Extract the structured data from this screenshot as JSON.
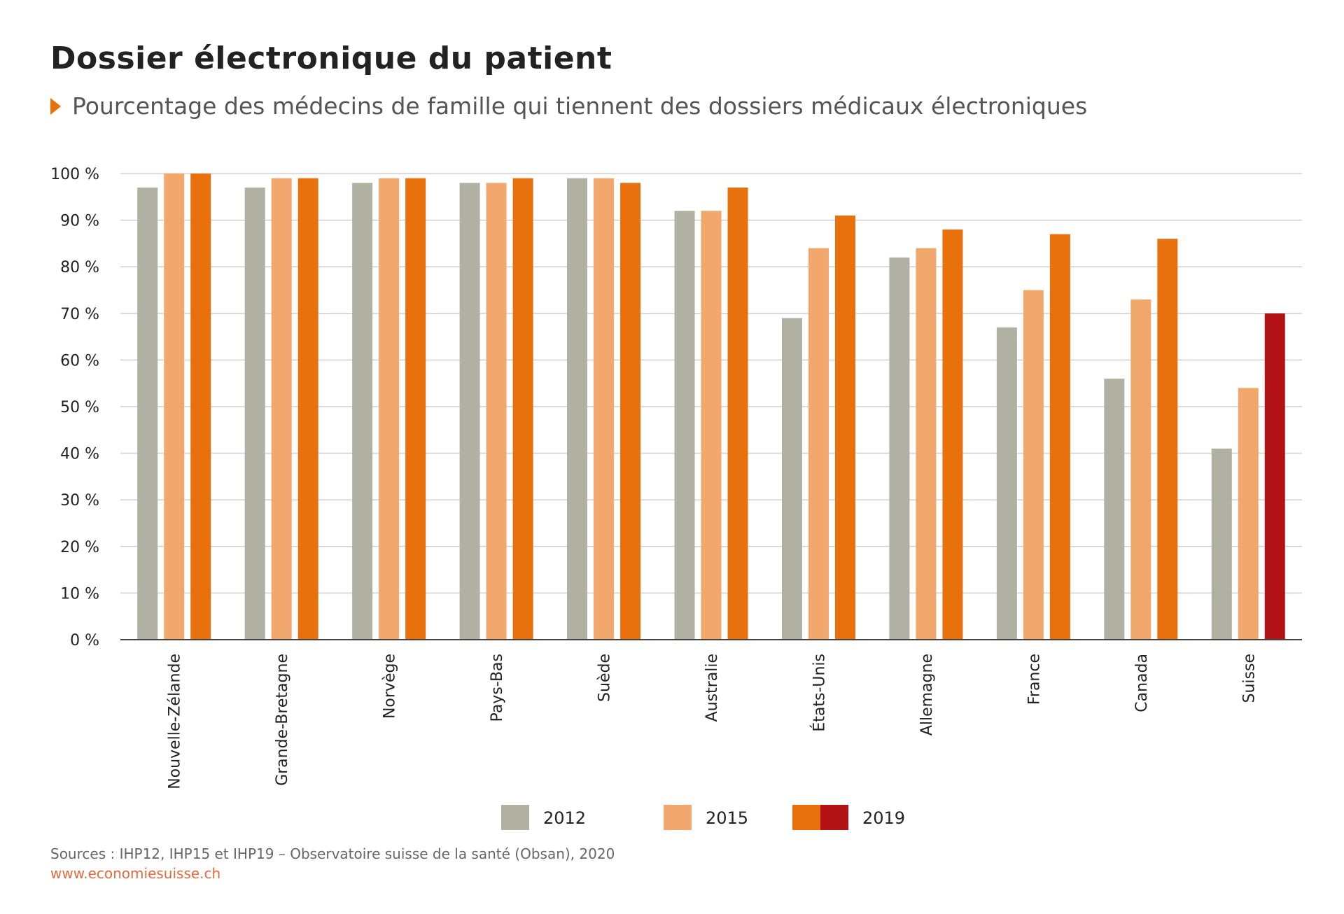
{
  "header": {
    "title": "Dossier électronique du patient",
    "subtitle": "Pourcentage des médecins de famille qui tiennent des dossiers médicaux électroniques"
  },
  "footer": {
    "source": "Sources : IHP12, IHP15 et IHP19 – Observatoire suisse de la santé (Obsan), 2020",
    "website": "www.economiesuisse.ch"
  },
  "colors": {
    "accent": "#e8700d",
    "s2012": "#b0b0a3",
    "s2015": "#f2a86d",
    "s2019": "#e8700d",
    "highlight": "#b31217",
    "grid": "#cfcfcf"
  },
  "chart_data": {
    "type": "bar",
    "title": "Dossier électronique du patient",
    "subtitle": "Pourcentage des médecins de famille qui tiennent des dossiers médicaux électroniques",
    "categories": [
      "Nouvelle-Zélande",
      "Grande-Bretagne",
      "Norvège",
      "Pays-Bas",
      "Suède",
      "Australie",
      "États-Unis",
      "Allemagne",
      "France",
      "Canada",
      "Suisse"
    ],
    "series": [
      {
        "name": "2012",
        "values": [
          97,
          97,
          98,
          98,
          99,
          92,
          69,
          82,
          67,
          56,
          41
        ]
      },
      {
        "name": "2015",
        "values": [
          100,
          99,
          99,
          98,
          99,
          92,
          84,
          84,
          75,
          73,
          54
        ]
      },
      {
        "name": "2019",
        "values": [
          100,
          99,
          99,
          99,
          98,
          97,
          91,
          88,
          87,
          86,
          70
        ]
      }
    ],
    "highlight_category": "Suisse",
    "y_tick_labels": [
      "0 %",
      "10 %",
      "20 %",
      "30 %",
      "40 %",
      "50 %",
      "60 %",
      "70 %",
      "80 %",
      "90 %",
      "100 %"
    ],
    "ylim": [
      0,
      100
    ],
    "grid": true,
    "legend_position": "bottom"
  }
}
